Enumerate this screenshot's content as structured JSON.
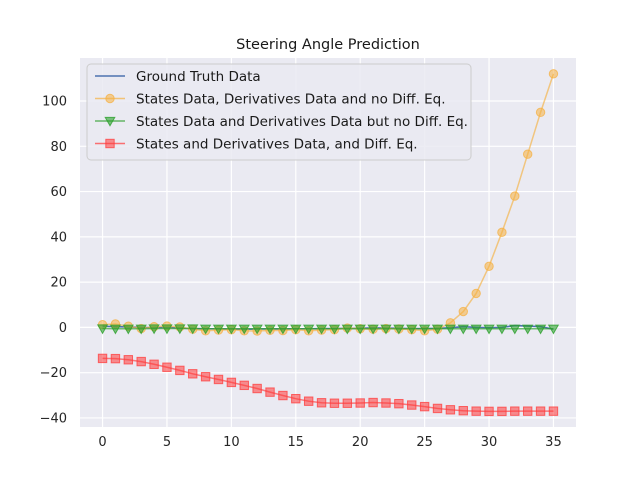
{
  "chart_data": {
    "type": "line",
    "title": "Steering Angle Prediction",
    "xlabel": "",
    "ylabel": "",
    "xlim": [
      -1.75,
      36.75
    ],
    "ylim": [
      -44,
      119
    ],
    "x_ticks": [
      0,
      5,
      10,
      15,
      20,
      25,
      30,
      35
    ],
    "y_ticks": [
      -40,
      -20,
      0,
      20,
      40,
      60,
      80,
      100
    ],
    "grid": true,
    "legend_position": "upper-left",
    "colors": {
      "background": "#eaeaf2",
      "grid": "#ffffff",
      "ground_truth": "#4c72b0",
      "states_derivatives_no_diffeq": "#f5b041",
      "states_and_derivatives_no_diffeq": "#2ca02c",
      "states_derivatives_diffeq": "#ff3b3b"
    },
    "series": [
      {
        "key": "ground_truth",
        "name": "Ground Truth Data",
        "marker": "none",
        "x": [
          0,
          1,
          2,
          3,
          4,
          5,
          6,
          7,
          8,
          9,
          10,
          11,
          12,
          13,
          14,
          15,
          16,
          17,
          18,
          19,
          20,
          21,
          22,
          23,
          24,
          25,
          26,
          27,
          28,
          29,
          30,
          31,
          32,
          33,
          34,
          35
        ],
        "values": [
          0.5,
          0.3,
          0.2,
          0,
          -0.2,
          0,
          -0.3,
          -0.5,
          -0.6,
          -0.6,
          -0.8,
          -0.8,
          -0.7,
          -0.7,
          -0.7,
          -0.6,
          -0.6,
          -0.5,
          -0.5,
          -0.4,
          -0.4,
          -0.2,
          -0.3,
          -0.4,
          -0.5,
          -0.5,
          -0.4,
          -0.2,
          0.3,
          0,
          -0.2,
          0,
          0.8,
          0.6,
          0.3,
          -0.8
        ]
      },
      {
        "key": "states_derivatives_no_diffeq",
        "name": "States Data, Derivatives Data and no Diff. Eq.",
        "marker": "circle",
        "x": [
          0,
          1,
          2,
          3,
          4,
          5,
          6,
          7,
          8,
          9,
          10,
          11,
          12,
          13,
          14,
          15,
          16,
          17,
          18,
          19,
          20,
          21,
          22,
          23,
          24,
          25,
          26,
          27,
          28,
          29,
          30,
          31,
          32,
          33,
          34,
          35
        ],
        "values": [
          1.2,
          1.5,
          0.5,
          -0.5,
          0.3,
          0.6,
          0.2,
          -0.8,
          -1.5,
          -1.2,
          -1,
          -1.5,
          -1.6,
          -1.3,
          -1.4,
          -1,
          -1.5,
          -1.2,
          -1,
          -0.3,
          -0.6,
          -0.8,
          -0.5,
          -0.7,
          -1,
          -1.5,
          -0.8,
          2,
          7,
          15,
          27,
          42,
          58,
          76.5,
          95,
          112
        ]
      },
      {
        "key": "states_and_derivatives_no_diffeq",
        "name": "States Data and Derivatives Data but no Diff. Eq.",
        "marker": "triangle-down",
        "x": [
          0,
          1,
          2,
          3,
          4,
          5,
          6,
          7,
          8,
          9,
          10,
          11,
          12,
          13,
          14,
          15,
          16,
          17,
          18,
          19,
          20,
          21,
          22,
          23,
          24,
          25,
          26,
          27,
          28,
          29,
          30,
          31,
          32,
          33,
          34,
          35
        ],
        "values": [
          -0.5,
          -0.6,
          -0.6,
          -0.6,
          -0.5,
          -0.5,
          -0.5,
          -0.5,
          -0.6,
          -0.6,
          -0.6,
          -0.6,
          -0.6,
          -0.6,
          -0.6,
          -0.6,
          -0.6,
          -0.6,
          -0.6,
          -0.6,
          -0.6,
          -0.6,
          -0.6,
          -0.6,
          -0.6,
          -0.6,
          -0.6,
          -0.6,
          -0.6,
          -0.6,
          -0.6,
          -0.6,
          -0.6,
          -0.6,
          -0.6,
          -0.6
        ]
      },
      {
        "key": "states_derivatives_diffeq",
        "name": "States and Derivatives Data, and Diff. Eq.",
        "marker": "square",
        "x": [
          0,
          1,
          2,
          3,
          4,
          5,
          6,
          7,
          8,
          9,
          10,
          11,
          12,
          13,
          14,
          15,
          16,
          17,
          18,
          19,
          20,
          21,
          22,
          23,
          24,
          25,
          26,
          27,
          28,
          29,
          30,
          31,
          32,
          33,
          34,
          35
        ],
        "values": [
          -13.7,
          -13.8,
          -14.3,
          -15.1,
          -16.3,
          -17.6,
          -19,
          -20.5,
          -21.8,
          -23,
          -24.3,
          -25.6,
          -27,
          -28.6,
          -30.1,
          -31.5,
          -32.6,
          -33.3,
          -33.5,
          -33.5,
          -33.4,
          -33.2,
          -33.4,
          -33.7,
          -34.3,
          -35,
          -35.8,
          -36.4,
          -36.8,
          -37,
          -37.1,
          -37.1,
          -37,
          -37,
          -37,
          -37
        ]
      }
    ]
  }
}
